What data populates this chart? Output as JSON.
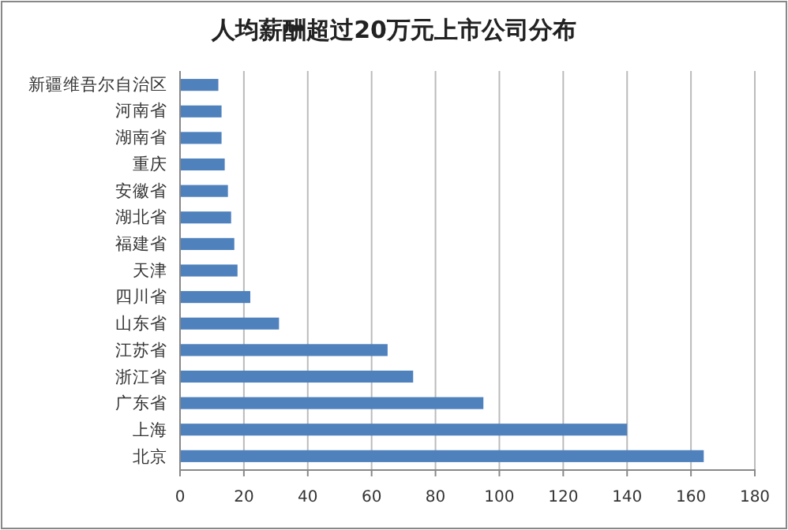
{
  "chart_data": {
    "type": "bar",
    "orientation": "horizontal",
    "title": "人均薪酬超过20万元上市公司分布",
    "categories": [
      "新疆维吾尔自治区",
      "河南省",
      "湖南省",
      "重庆",
      "安徽省",
      "湖北省",
      "福建省",
      "天津",
      "四川省",
      "山东省",
      "江苏省",
      "浙江省",
      "广东省",
      "上海",
      "北京"
    ],
    "values": [
      12,
      13,
      13,
      14,
      15,
      16,
      17,
      18,
      22,
      31,
      65,
      73,
      95,
      140,
      164
    ],
    "color": "#4f81bd",
    "xlim": [
      0,
      180
    ],
    "xticks": [
      0,
      20,
      40,
      60,
      80,
      100,
      120,
      140,
      160,
      180
    ],
    "grid": "x"
  }
}
